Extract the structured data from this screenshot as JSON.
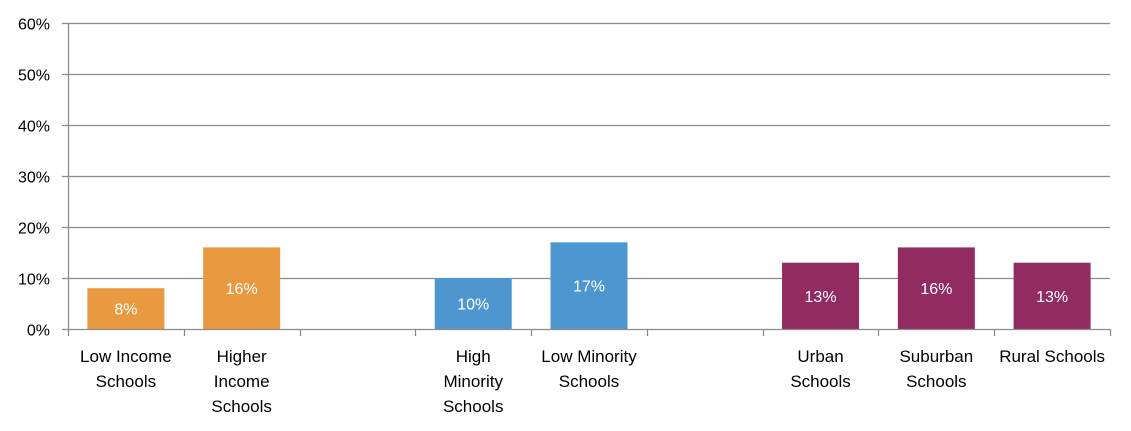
{
  "chart_data": {
    "type": "bar",
    "ylim": [
      0,
      60
    ],
    "y_ticks": [
      "0%",
      "10%",
      "20%",
      "30%",
      "40%",
      "50%",
      "60%"
    ],
    "y_tick_values": [
      0,
      10,
      20,
      30,
      40,
      50,
      60
    ],
    "grid": true,
    "legend": "none",
    "categories": [
      [
        "Low Income",
        "Schools"
      ],
      [
        "Higher",
        "Income",
        "Schools"
      ],
      [],
      [
        "High",
        "Minority",
        "Schools"
      ],
      [
        "Low Minority",
        "Schools"
      ],
      [],
      [
        "Urban",
        "Schools"
      ],
      [
        "Suburban",
        "Schools"
      ],
      [
        "Rural Schools"
      ]
    ],
    "values": [
      8,
      16,
      null,
      10,
      17,
      null,
      13,
      16,
      13
    ],
    "data_labels": [
      "8%",
      "16%",
      "",
      "10%",
      "17%",
      "",
      "13%",
      "16%",
      "13%"
    ],
    "colors": [
      "#E99A41",
      "#E99A41",
      "",
      "#4E96D0",
      "#4E96D0",
      "",
      "#912B61",
      "#912B61",
      "#912B61"
    ],
    "gridline_color": "#8C8C8C",
    "axis_color": "#8C8C8C"
  }
}
